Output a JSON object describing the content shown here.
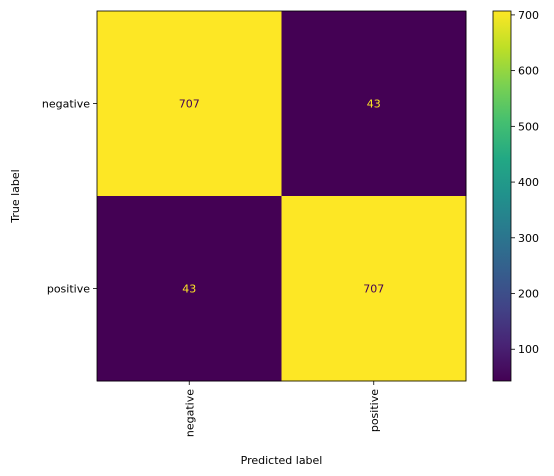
{
  "chart_data": {
    "type": "heatmap",
    "title": "",
    "xlabel": "Predicted label",
    "ylabel": "True label",
    "x_categories": [
      "negative",
      "positive"
    ],
    "y_categories": [
      "negative",
      "positive"
    ],
    "values": [
      [
        707,
        43
      ],
      [
        43,
        707
      ]
    ],
    "colormap": "viridis",
    "colorbar": {
      "range": [
        43,
        707
      ],
      "ticks": [
        100,
        200,
        300,
        400,
        500,
        600,
        700
      ]
    },
    "text_colors": {
      "on_high": "#440154",
      "on_low": "#fde725"
    }
  }
}
